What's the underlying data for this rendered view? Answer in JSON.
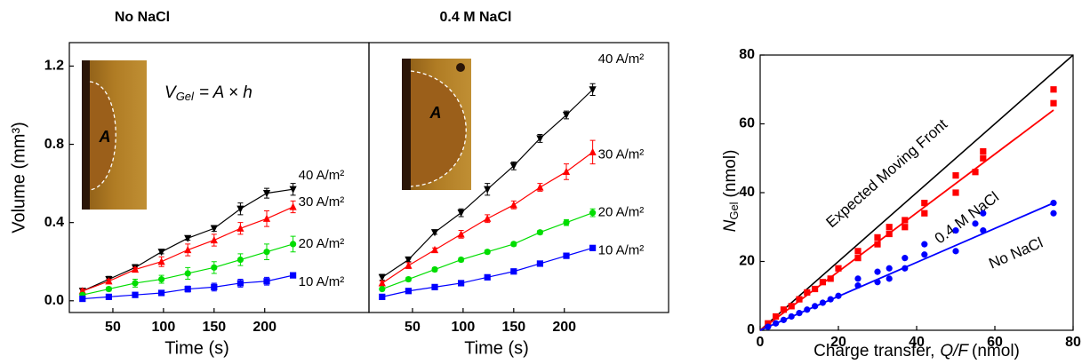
{
  "chart_data": [
    {
      "type": "line",
      "title": "No NaCl",
      "title_color": "#0000ff",
      "x_label": "Time (s)",
      "y_label": "Volume (mm³)",
      "x": [
        20,
        46,
        72,
        98,
        124,
        150,
        176,
        202,
        228
      ],
      "xlim": [
        7,
        303
      ],
      "xticks": [
        50,
        100,
        150,
        200
      ],
      "ylim": [
        -0.06,
        1.32
      ],
      "yticks": [
        {
          "value": 0,
          "label": "0.0"
        },
        0.4,
        0.8,
        1.2
      ],
      "inset_label": "A",
      "equation": {
        "symbol": "V",
        "subscript": "Gel",
        "rest": "= A × h"
      },
      "series": [
        {
          "name": "40 A/m²",
          "color": "#000000",
          "marker": "triangle-down",
          "values": [
            0.05,
            0.11,
            0.17,
            0.25,
            0.32,
            0.37,
            0.47,
            0.55,
            0.57
          ],
          "errors": [
            0.01,
            0.015,
            0.015,
            0.01,
            0.01,
            0.015,
            0.03,
            0.025,
            0.03
          ]
        },
        {
          "name": "30 A/m²",
          "color": "#ff0000",
          "marker": "triangle-up",
          "values": [
            0.05,
            0.1,
            0.16,
            0.2,
            0.26,
            0.31,
            0.37,
            0.42,
            0.48
          ],
          "errors": [
            0.01,
            0.01,
            0.01,
            0.025,
            0.03,
            0.03,
            0.03,
            0.04,
            0.03
          ]
        },
        {
          "name": "20 A/m²",
          "color": "#00dd00",
          "marker": "circle",
          "values": [
            0.03,
            0.06,
            0.09,
            0.11,
            0.14,
            0.17,
            0.21,
            0.25,
            0.29
          ],
          "errors": [
            0.005,
            0.01,
            0.02,
            0.02,
            0.03,
            0.03,
            0.03,
            0.04,
            0.04
          ]
        },
        {
          "name": "10 A/m²",
          "color": "#0000ff",
          "marker": "square",
          "values": [
            0.01,
            0.02,
            0.03,
            0.04,
            0.06,
            0.07,
            0.09,
            0.1,
            0.13
          ],
          "errors": [
            0.005,
            0.005,
            0.005,
            0.01,
            0.015,
            0.02,
            0.02,
            0.02,
            0.01
          ]
        }
      ]
    },
    {
      "type": "line",
      "title": "0.4 M NaCl",
      "title_color": "#ff0000",
      "x_label": "Time (s)",
      "x": [
        20,
        46,
        72,
        98,
        124,
        150,
        176,
        202,
        228
      ],
      "xlim": [
        7,
        303
      ],
      "xticks": [
        50,
        100,
        150,
        200
      ],
      "ylim": [
        -0.06,
        1.32
      ],
      "inset_label": "A",
      "series": [
        {
          "name": "40 A/m²",
          "color": "#000000",
          "marker": "triangle-down",
          "values": [
            0.12,
            0.21,
            0.35,
            0.45,
            0.57,
            0.69,
            0.83,
            0.95,
            1.08
          ],
          "errors": [
            0.015,
            0.01,
            0.01,
            0.02,
            0.03,
            0.02,
            0.02,
            0.02,
            0.03
          ]
        },
        {
          "name": "30 A/m²",
          "color": "#ff0000",
          "marker": "triangle-up",
          "values": [
            0.09,
            0.18,
            0.26,
            0.34,
            0.42,
            0.49,
            0.58,
            0.66,
            0.76
          ],
          "errors": [
            0.01,
            0.015,
            0.01,
            0.02,
            0.02,
            0.02,
            0.02,
            0.04,
            0.06
          ]
        },
        {
          "name": "20 A/m²",
          "color": "#00dd00",
          "marker": "circle",
          "values": [
            0.06,
            0.11,
            0.16,
            0.21,
            0.25,
            0.29,
            0.35,
            0.4,
            0.45
          ],
          "errors": [
            0.005,
            0.01,
            0.01,
            0.01,
            0.01,
            0.01,
            0.01,
            0.015,
            0.02
          ]
        },
        {
          "name": "10 A/m²",
          "color": "#0000ff",
          "marker": "square",
          "values": [
            0.02,
            0.05,
            0.07,
            0.09,
            0.12,
            0.15,
            0.19,
            0.23,
            0.27
          ],
          "errors": [
            0.005,
            0.005,
            0.005,
            0.005,
            0.005,
            0.005,
            0.005,
            0.005,
            0.01
          ]
        }
      ]
    },
    {
      "type": "scatter",
      "x_label": {
        "text": "Charge transfer,",
        "symbol": "Q/F",
        "unit": "(nmol)"
      },
      "y_label": {
        "symbol": "N",
        "subscript": "Gel",
        "unit": "(nmol)"
      },
      "xlim": [
        0,
        80
      ],
      "xticks": [
        0,
        20,
        40,
        60,
        80
      ],
      "ylim": [
        0,
        80
      ],
      "yticks": [
        0,
        20,
        40,
        60,
        80
      ],
      "reference": {
        "name": "Expected Moving Front",
        "color": "#000000",
        "x": [
          0,
          80
        ],
        "values": [
          0,
          80
        ]
      },
      "series": [
        {
          "name": "0.4 M NaCl",
          "color": "#ff0000",
          "marker": "square",
          "x": [
            2,
            4,
            6,
            8,
            10,
            12,
            14,
            16,
            18,
            20,
            25,
            25,
            30,
            30,
            33,
            33,
            37,
            37,
            42,
            42,
            50,
            50,
            55,
            57,
            57,
            75,
            75
          ],
          "values": [
            2,
            4,
            6,
            7,
            9,
            11,
            12,
            14,
            15,
            18,
            21,
            23,
            25,
            27,
            28,
            30,
            30,
            32,
            34,
            37,
            40,
            45,
            46,
            50,
            52,
            66,
            70
          ],
          "fit": {
            "x": [
              0,
              75
            ],
            "values": [
              0,
              64
            ]
          }
        },
        {
          "name": "No NaCl",
          "color": "#0000ff",
          "marker": "circle",
          "x": [
            2,
            4,
            6,
            8,
            10,
            12,
            14,
            16,
            18,
            20,
            25,
            25,
            30,
            30,
            33,
            33,
            37,
            37,
            42,
            42,
            50,
            50,
            55,
            57,
            57,
            75,
            75
          ],
          "values": [
            1,
            2,
            3,
            4,
            5,
            6,
            7,
            8,
            9,
            10,
            13,
            15,
            14,
            17,
            15,
            18,
            18,
            21,
            22,
            25,
            23,
            29,
            31,
            29,
            34,
            34,
            37
          ],
          "fit": {
            "x": [
              0,
              75
            ],
            "values": [
              0,
              37
            ]
          }
        }
      ]
    }
  ]
}
